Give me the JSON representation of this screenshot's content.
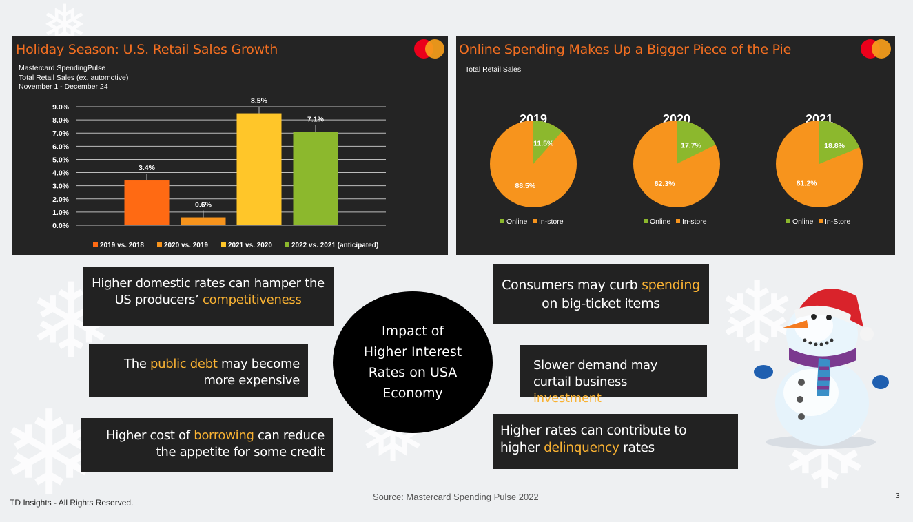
{
  "colors": {
    "panel_bg": "#242424",
    "title_orange": "#f36f21",
    "highlight": "#f9b233",
    "bar_2019": "#ff6a13",
    "bar_2020": "#f7941d",
    "bar_2021": "#ffc629",
    "bar_2022": "#8cb82d",
    "pie_online": "#8cb82d",
    "pie_instore": "#f7941d"
  },
  "left_panel": {
    "title": "Holiday Season: U.S. Retail Sales Growth",
    "subtitle_lines": [
      "Mastercard SpendingPulse",
      "Total Retail Sales (ex. automotive)",
      "November 1  - December 24"
    ]
  },
  "right_panel": {
    "title": "Online Spending Makes Up a Bigger Piece of the Pie",
    "subtitle": "Total Retail Sales"
  },
  "chart_data": [
    {
      "type": "bar",
      "categories": [
        "2019 vs. 2018",
        "2020 vs. 2019",
        "2021 vs. 2020",
        "2022 vs. 2021 (anticipated)"
      ],
      "values": [
        3.4,
        0.6,
        8.5,
        7.1
      ],
      "value_labels": [
        "3.4%",
        "0.6%",
        "8.5%",
        "7.1%"
      ],
      "colors": [
        "#ff6a13",
        "#f7941d",
        "#ffc629",
        "#8cb82d"
      ],
      "ylim": [
        0,
        9
      ],
      "yticks": [
        "0.0%",
        "1.0%",
        "2.0%",
        "3.0%",
        "4.0%",
        "5.0%",
        "6.0%",
        "7.0%",
        "8.0%",
        "9.0%"
      ],
      "grid": true,
      "legend_position": "bottom"
    },
    {
      "type": "pie",
      "title": "2019",
      "slices": [
        {
          "label": "Online",
          "value": 11.5,
          "text": "11.5%"
        },
        {
          "label": "In-store",
          "value": 88.5,
          "text": "88.5%"
        }
      ],
      "legend": [
        "Online",
        "In-store"
      ]
    },
    {
      "type": "pie",
      "title": "2020",
      "slices": [
        {
          "label": "Online",
          "value": 17.7,
          "text": "17.7%"
        },
        {
          "label": "In-store",
          "value": 82.3,
          "text": "82.3%"
        }
      ],
      "legend": [
        "Online",
        "In-store"
      ]
    },
    {
      "type": "pie",
      "title": "2021",
      "slices": [
        {
          "label": "Online",
          "value": 18.8,
          "text": "18.8%"
        },
        {
          "label": "In-Store",
          "value": 81.2,
          "text": "81.2%"
        }
      ],
      "legend": [
        "Online",
        "In-Store"
      ]
    }
  ],
  "center": {
    "text": "Impact of Higher Interest Rates on USA Economy"
  },
  "boxes": {
    "b1": {
      "pre": "Higher domestic rates can hamper the US producers’ ",
      "hl": "competitiveness",
      "post": ""
    },
    "b2": {
      "pre": "The ",
      "hl": "public debt",
      "post": " may become more expensive"
    },
    "b3": {
      "pre": "Higher cost of ",
      "hl": "borrowing",
      "post": " can reduce the appetite for some credit"
    },
    "b4": {
      "pre": "Consumers may curb ",
      "hl": "spending",
      "post": " on big-ticket items"
    },
    "b5": {
      "pre": "Slower demand may curtail business ",
      "hl": "investment",
      "post": ""
    },
    "b6": {
      "pre": "Higher rates can contribute to higher ",
      "hl": "delinquency",
      "post": " rates"
    }
  },
  "footer": {
    "rights": "TD Insights - All Rights Reserved.",
    "source": "Source: Mastercard Spending Pulse 2022",
    "page": "3"
  }
}
